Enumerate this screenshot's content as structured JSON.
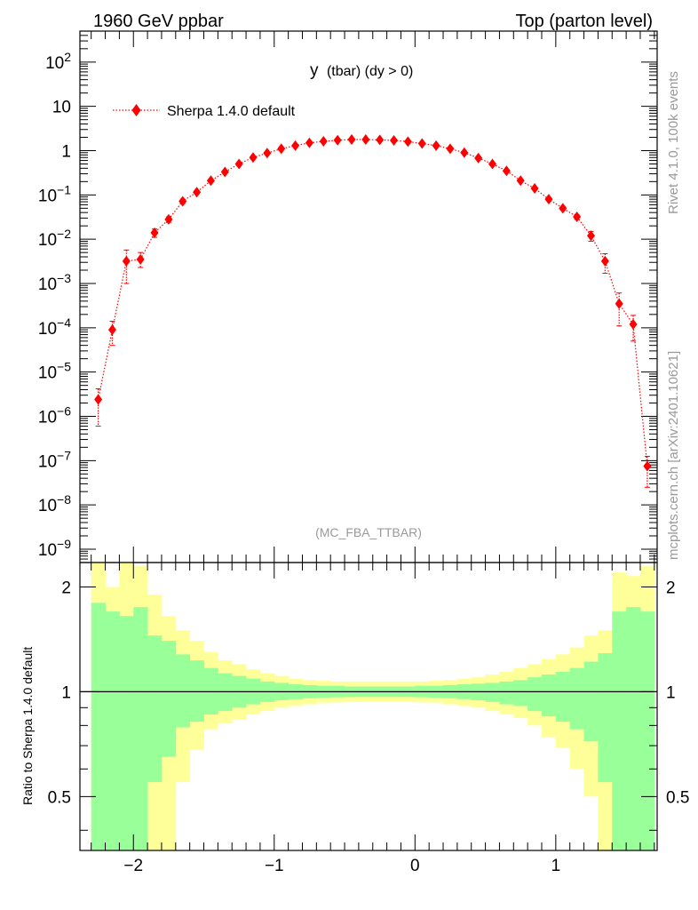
{
  "header": {
    "left": "1960 GeV ppbar",
    "right": "Top (parton level)"
  },
  "side_text": {
    "rivet": "Rivet 4.1.0,  100k events",
    "mcplots": "mcplots.cern.ch [arXiv:2401.10621]"
  },
  "colors": {
    "mc": "#ff0000",
    "band_inner": "#99ff99",
    "band_outer": "#ffff99",
    "axis": "#000000",
    "watermark": "#999999"
  },
  "chart_data": [
    {
      "type": "scatter",
      "role": "main",
      "title": "y (tbar) (dy > 0)",
      "title_main": "y",
      "title_sub": "(tbar) (dy > 0)",
      "watermark": "(MC_FBA_TTBAR)",
      "xlabel": "",
      "ylabel": "",
      "yscale": "log",
      "xlim": [
        -2.38,
        1.72
      ],
      "ylim": [
        5e-10,
        500
      ],
      "y_tick_labels": [
        "10^-9",
        "10^-8",
        "10^-7",
        "10^-6",
        "10^-5",
        "10^-4",
        "10^-3",
        "10^-2",
        "10^-1",
        "1",
        "10",
        "10^2"
      ],
      "legend": "top-left",
      "series": [
        {
          "name": "Sherpa 1.4.0 default",
          "line": "dotted",
          "marker": "diamond",
          "x": [
            -2.25,
            -2.15,
            -2.05,
            -1.95,
            -1.85,
            -1.75,
            -1.65,
            -1.55,
            -1.45,
            -1.35,
            -1.25,
            -1.15,
            -1.05,
            -0.95,
            -0.85,
            -0.75,
            -0.65,
            -0.55,
            -0.45,
            -0.35,
            -0.25,
            -0.15,
            -0.05,
            0.05,
            0.15,
            0.25,
            0.35,
            0.45,
            0.55,
            0.65,
            0.75,
            0.85,
            0.95,
            1.05,
            1.15,
            1.25,
            1.35,
            1.45,
            1.55,
            1.65
          ],
          "y": [
            2.4e-06,
            9e-05,
            0.0032,
            0.0035,
            0.014,
            0.028,
            0.072,
            0.115,
            0.21,
            0.33,
            0.5,
            0.7,
            0.88,
            1.1,
            1.3,
            1.5,
            1.62,
            1.72,
            1.78,
            1.78,
            1.75,
            1.7,
            1.6,
            1.45,
            1.3,
            1.1,
            0.9,
            0.68,
            0.5,
            0.35,
            0.21,
            0.14,
            0.08,
            0.05,
            0.032,
            0.012,
            0.0032,
            0.00035,
            0.00012,
            7.5e-08
          ],
          "err_low": [
            1.8e-06,
            5e-05,
            0.0022,
            0.0012,
            0.003,
            0.004,
            0.008,
            0.008,
            0.01,
            0.01,
            0.012,
            0.012,
            0.012,
            0.014,
            0.014,
            0.015,
            0.016,
            0.016,
            0.016,
            0.016,
            0.016,
            0.016,
            0.016,
            0.015,
            0.014,
            0.013,
            0.012,
            0.011,
            0.01,
            0.009,
            0.008,
            0.007,
            0.006,
            0.005,
            0.004,
            0.003,
            0.0015,
            0.00024,
            7e-05,
            5e-08
          ],
          "err_high": [
            1.8e-06,
            5e-05,
            0.0025,
            0.0015,
            0.003,
            0.004,
            0.008,
            0.008,
            0.01,
            0.01,
            0.012,
            0.012,
            0.012,
            0.014,
            0.014,
            0.015,
            0.016,
            0.016,
            0.016,
            0.016,
            0.016,
            0.016,
            0.016,
            0.015,
            0.014,
            0.013,
            0.012,
            0.011,
            0.01,
            0.009,
            0.008,
            0.007,
            0.006,
            0.005,
            0.004,
            0.003,
            0.0015,
            0.00026,
            7e-05,
            5e-08
          ]
        }
      ]
    },
    {
      "type": "area",
      "role": "ratio",
      "ylabel": "Ratio to Sherpa 1.4.0 default",
      "xlabel": "",
      "yscale": "log",
      "xlim": [
        -2.38,
        1.72
      ],
      "ylim": [
        0.35,
        2.35
      ],
      "x_ticks": [
        -2,
        -1,
        0,
        1
      ],
      "x_tick_labels": [
        "−2",
        "−1",
        "0",
        "1"
      ],
      "y_ticks": [
        0.5,
        1,
        2
      ],
      "y_tick_labels": [
        "0.5",
        "1",
        "2"
      ],
      "reference_line": 1,
      "bin_edges": [
        -2.3,
        -2.2,
        -2.1,
        -2.0,
        -1.9,
        -1.8,
        -1.7,
        -1.6,
        -1.5,
        -1.4,
        -1.3,
        -1.2,
        -1.1,
        -1.0,
        -0.9,
        -0.8,
        -0.7,
        -0.6,
        -0.5,
        -0.4,
        -0.3,
        -0.2,
        -0.1,
        0.0,
        0.1,
        0.2,
        0.3,
        0.4,
        0.5,
        0.6,
        0.7,
        0.8,
        0.9,
        1.0,
        1.1,
        1.2,
        1.3,
        1.4,
        1.5,
        1.6,
        1.7
      ],
      "series": [
        {
          "name": "1-sigma band",
          "upper": [
            1.8,
            1.7,
            1.65,
            1.75,
            1.45,
            1.4,
            1.28,
            1.23,
            1.17,
            1.13,
            1.11,
            1.09,
            1.07,
            1.06,
            1.05,
            1.045,
            1.04,
            1.04,
            1.035,
            1.035,
            1.035,
            1.035,
            1.035,
            1.04,
            1.04,
            1.045,
            1.05,
            1.055,
            1.06,
            1.07,
            1.08,
            1.1,
            1.12,
            1.14,
            1.17,
            1.22,
            1.29,
            1.7,
            1.75,
            1.7
          ],
          "lower": [
            0.3,
            0.3,
            0.3,
            0.3,
            0.55,
            0.65,
            0.79,
            0.82,
            0.86,
            0.88,
            0.9,
            0.92,
            0.935,
            0.945,
            0.952,
            0.958,
            0.962,
            0.964,
            0.966,
            0.966,
            0.966,
            0.966,
            0.966,
            0.964,
            0.962,
            0.958,
            0.952,
            0.945,
            0.935,
            0.92,
            0.91,
            0.88,
            0.85,
            0.82,
            0.78,
            0.72,
            0.55,
            0.3,
            0.3,
            0.3
          ]
        },
        {
          "name": "2-sigma band",
          "upper": [
            2.35,
            2.0,
            2.35,
            2.3,
            1.9,
            1.65,
            1.5,
            1.4,
            1.3,
            1.23,
            1.2,
            1.16,
            1.13,
            1.11,
            1.09,
            1.08,
            1.075,
            1.07,
            1.07,
            1.07,
            1.07,
            1.07,
            1.07,
            1.07,
            1.075,
            1.08,
            1.09,
            1.1,
            1.12,
            1.14,
            1.17,
            1.2,
            1.24,
            1.28,
            1.34,
            1.45,
            1.5,
            2.2,
            2.15,
            2.3
          ],
          "lower": [
            0.3,
            0.3,
            0.3,
            0.3,
            0.3,
            0.3,
            0.55,
            0.68,
            0.78,
            0.81,
            0.83,
            0.86,
            0.88,
            0.9,
            0.91,
            0.92,
            0.93,
            0.932,
            0.935,
            0.935,
            0.935,
            0.935,
            0.935,
            0.932,
            0.93,
            0.92,
            0.91,
            0.9,
            0.88,
            0.86,
            0.84,
            0.8,
            0.74,
            0.69,
            0.6,
            0.5,
            0.3,
            0.3,
            0.3,
            0.3
          ]
        }
      ]
    }
  ]
}
